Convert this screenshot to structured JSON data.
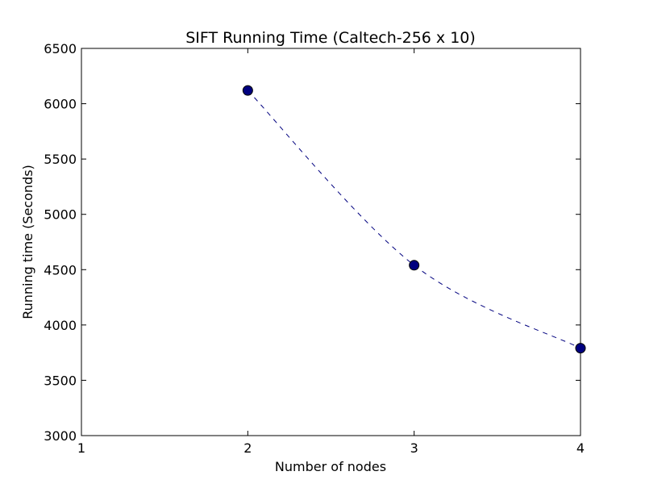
{
  "chart_data": {
    "type": "line",
    "title": "SIFT Running Time (Caltech-256 x 10)",
    "xlabel": "Number of nodes",
    "ylabel": "Running time (Seconds)",
    "xlim": [
      1,
      4
    ],
    "ylim": [
      3000,
      6500
    ],
    "xticks": [
      1,
      2,
      3,
      4
    ],
    "yticks": [
      3000,
      3500,
      4000,
      4500,
      5000,
      5500,
      6000,
      6500
    ],
    "grid": false,
    "line_style": "dashed",
    "marker": "circle",
    "series": [
      {
        "x": [
          2,
          3,
          4
        ],
        "y": [
          6120,
          4540,
          3790
        ],
        "color": "#00007f"
      }
    ]
  }
}
